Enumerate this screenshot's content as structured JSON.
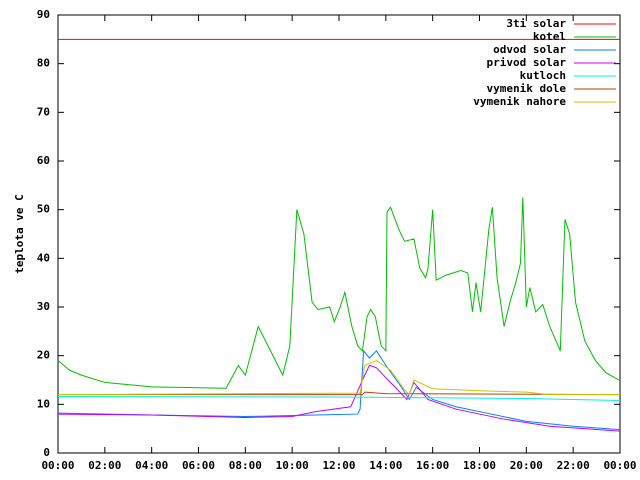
{
  "chart_data": {
    "type": "line",
    "ylabel": "teplota ve C",
    "xlim": [
      0,
      24
    ],
    "xticks": [
      {
        "value": 0,
        "label": "00:00"
      },
      {
        "value": 2,
        "label": "02:00"
      },
      {
        "value": 4,
        "label": "04:00"
      },
      {
        "value": 6,
        "label": "06:00"
      },
      {
        "value": 8,
        "label": "08:00"
      },
      {
        "value": 10,
        "label": "10:00"
      },
      {
        "value": 12,
        "label": "12:00"
      },
      {
        "value": 14,
        "label": "14:00"
      },
      {
        "value": 16,
        "label": "16:00"
      },
      {
        "value": 18,
        "label": "18:00"
      },
      {
        "value": 20,
        "label": "20:00"
      },
      {
        "value": 22,
        "label": "22:00"
      },
      {
        "value": 24,
        "label": "00:00"
      }
    ],
    "ylim": [
      0,
      90
    ],
    "yticks": [
      0,
      10,
      20,
      30,
      40,
      50,
      60,
      70,
      80,
      90
    ],
    "legend": "top-right",
    "series": [
      {
        "name": "3ti solar",
        "color": "#ff0000",
        "x": [
          0,
          24
        ],
        "values": [
          85,
          85
        ]
      },
      {
        "name": "kotel",
        "color": "#00c000",
        "x": [
          0,
          0.5,
          1,
          2,
          4,
          6,
          7.18,
          7.7,
          8.0,
          8.55,
          9.6,
          9.9,
          10.2,
          10.5,
          10.85,
          11.1,
          11.6,
          11.8,
          12.05,
          12.25,
          12.55,
          12.8,
          13.0,
          13.2,
          13.35,
          13.55,
          13.8,
          14.0,
          14.05,
          14.2,
          14.55,
          14.8,
          15.2,
          15.45,
          15.7,
          15.8,
          16.0,
          16.15,
          16.55,
          17.2,
          17.5,
          17.7,
          17.85,
          18.05,
          18.4,
          18.55,
          18.75,
          19.05,
          19.3,
          19.55,
          19.75,
          19.85,
          20.0,
          20.15,
          20.4,
          20.7,
          21.0,
          21.45,
          21.65,
          21.85,
          22.1,
          22.5,
          22.95,
          23.4,
          23.95
        ],
        "values": [
          19,
          17,
          16,
          14.5,
          13.6,
          13.4,
          13.3,
          18,
          16,
          26,
          16,
          22,
          50,
          45,
          31,
          29.5,
          30,
          27,
          30,
          33,
          26,
          22,
          21,
          28,
          29.5,
          28,
          22,
          21,
          49.5,
          50.5,
          46,
          43.5,
          44,
          38,
          36,
          38,
          50,
          35.5,
          36.5,
          37.5,
          37,
          29,
          35,
          29,
          46,
          50.5,
          36,
          26,
          31,
          35,
          39,
          52.5,
          30,
          34,
          29,
          30.5,
          26,
          21,
          48,
          45,
          31,
          23,
          19,
          16.5,
          15
        ]
      },
      {
        "name": "odvod solar",
        "color": "#0080ff",
        "x": [
          0,
          4,
          8,
          11,
          12.8,
          12.9,
          13.05,
          13.3,
          13.6,
          14.0,
          14.6,
          15.0,
          15.3,
          16.0,
          17,
          18.5,
          20,
          22,
          24
        ],
        "values": [
          8.2,
          7.8,
          7.5,
          7.8,
          8.0,
          9,
          21,
          19.5,
          21,
          18,
          14,
          11,
          13.5,
          11,
          9.5,
          8,
          6.5,
          5.5,
          4.8
        ]
      },
      {
        "name": "privod solar",
        "color": "#c000ff",
        "x": [
          0,
          4,
          8,
          10,
          11,
          12.5,
          13.1,
          13.3,
          13.6,
          14.0,
          14.5,
          14.9,
          15.2,
          15.8,
          17,
          19,
          21,
          24
        ],
        "values": [
          8,
          7.8,
          7.3,
          7.5,
          8.5,
          9.5,
          16,
          18,
          17.5,
          15.5,
          13,
          11,
          14.5,
          11,
          9,
          7,
          5.5,
          4.5
        ]
      },
      {
        "name": "kutloch",
        "color": "#00eeee",
        "x": [
          0,
          12,
          20,
          24
        ],
        "values": [
          11.6,
          11.5,
          11.2,
          10.8
        ]
      },
      {
        "name": "vymenik dole",
        "color": "#c04000",
        "x": [
          0,
          13,
          13.1,
          14,
          24
        ],
        "values": [
          12,
          12,
          12.5,
          12.2,
          12
        ]
      },
      {
        "name": "vymenik nahore",
        "color": "#c8c800",
        "x": [
          0,
          12.9,
          13.1,
          13.6,
          14.2,
          14.8,
          15.0,
          15.2,
          16,
          18,
          20,
          21,
          24
        ],
        "values": [
          12,
          12.3,
          18,
          19,
          17,
          13,
          12,
          15,
          13.2,
          12.8,
          12.5,
          12,
          12
        ]
      }
    ]
  }
}
